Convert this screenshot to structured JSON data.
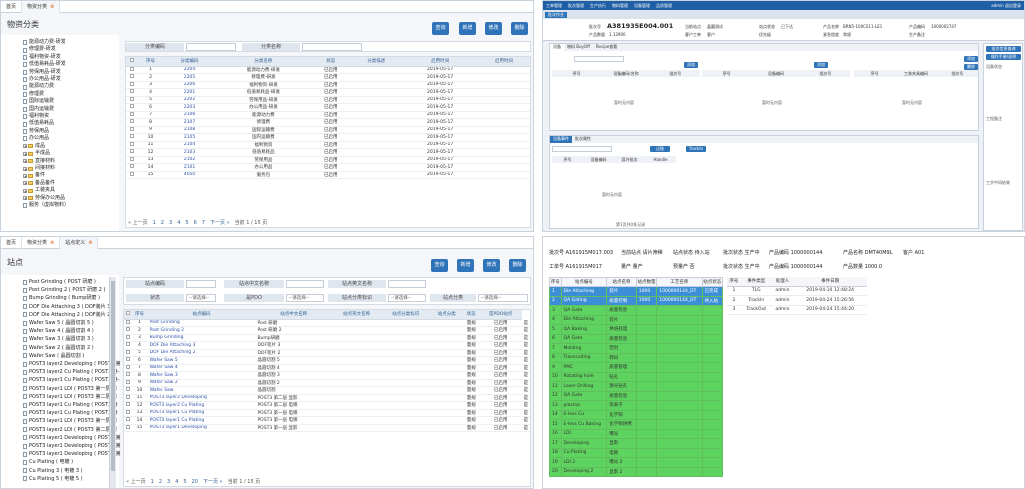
{
  "p1": {
    "tabs": [
      "首页",
      "物资分类"
    ],
    "title": "物资分类",
    "tree": [
      {
        "type": "leaf",
        "label": "能源动力费-研发"
      },
      {
        "type": "leaf",
        "label": "修理费-研发"
      },
      {
        "type": "leaf",
        "label": "福利物资-研发"
      },
      {
        "type": "leaf",
        "label": "低值易耗品-研发"
      },
      {
        "type": "leaf",
        "label": "劳保用品-研发"
      },
      {
        "type": "leaf",
        "label": "办公用品-研发"
      },
      {
        "type": "leaf",
        "label": "能源动力费"
      },
      {
        "type": "leaf",
        "label": "修理费"
      },
      {
        "type": "leaf",
        "label": "国际运输费"
      },
      {
        "type": "leaf",
        "label": "国内运输费"
      },
      {
        "type": "leaf",
        "label": "福利物资"
      },
      {
        "type": "leaf",
        "label": "低值易耗品"
      },
      {
        "type": "leaf",
        "label": "劳保用品"
      },
      {
        "type": "leaf",
        "label": "办公用品"
      },
      {
        "type": "folder",
        "label": "成品"
      },
      {
        "type": "folder",
        "label": "半成品"
      },
      {
        "type": "folder",
        "label": "直接材料"
      },
      {
        "type": "folder",
        "label": "间接材料"
      },
      {
        "type": "folder",
        "label": "备件"
      },
      {
        "type": "folder",
        "label": "备品备件"
      },
      {
        "type": "folder",
        "label": "工装夹具"
      },
      {
        "type": "folder",
        "label": "劳保办公用品"
      },
      {
        "type": "leaf",
        "label": "服务（虚拟物料）"
      }
    ],
    "buttons": {
      "query": "查询",
      "add": "新增",
      "edit": "修改",
      "delete": "删除"
    },
    "filters": {
      "code": "分类编码",
      "name": "分类名称"
    },
    "columns": [
      "",
      "序号",
      "分类编码",
      "分类名称",
      "状态",
      "分类描述",
      "启用时间",
      "启用时间"
    ],
    "rows": [
      [
        "1",
        "2204",
        "能源动力费-研发",
        "已启用",
        "",
        "2019-05-17",
        ""
      ],
      [
        "2",
        "2205",
        "修理费-研发",
        "已启用",
        "",
        "2019-05-17",
        ""
      ],
      [
        "3",
        "2206",
        "福利物资-研发",
        "已启用",
        "",
        "2019-05-17",
        ""
      ],
      [
        "4",
        "2201",
        "低值易耗品-研发",
        "已启用",
        "",
        "2019-05-17",
        ""
      ],
      [
        "5",
        "2202",
        "劳保用品-研发",
        "已启用",
        "",
        "2019-05-17",
        ""
      ],
      [
        "6",
        "2203",
        "办公用品-研发",
        "已启用",
        "",
        "2019-05-17",
        ""
      ],
      [
        "7",
        "2106",
        "能源动力费",
        "已启用",
        "",
        "2019-05-17",
        ""
      ],
      [
        "8",
        "2107",
        "修理费",
        "已启用",
        "",
        "2019-05-17",
        ""
      ],
      [
        "9",
        "2108",
        "国际运输费",
        "已启用",
        "",
        "2019-05-17",
        ""
      ],
      [
        "10",
        "2105",
        "国内运输费",
        "已启用",
        "",
        "2019-05-17",
        ""
      ],
      [
        "11",
        "2104",
        "福利物资",
        "已启用",
        "",
        "2019-05-17",
        ""
      ],
      [
        "12",
        "2103",
        "低值易耗品",
        "已启用",
        "",
        "2019-05-17",
        ""
      ],
      [
        "13",
        "2102",
        "劳保用品",
        "已启用",
        "",
        "2019-05-17",
        ""
      ],
      [
        "14",
        "2101",
        "办公用品",
        "已启用",
        "",
        "2019-05-17",
        ""
      ],
      [
        "15",
        "4050",
        "服务包",
        "已启用",
        "",
        "2019-05-17",
        ""
      ]
    ],
    "pager": {
      "prev": "« 上一页",
      "pages": [
        "1",
        "2",
        "3",
        "4",
        "5",
        "6",
        "7"
      ],
      "next": "下一页 »",
      "info": "当前 1 / 15 页"
    }
  },
  "p2": {
    "tabs": [
      "首页",
      "物资分类",
      "站点定义"
    ],
    "title": "站点",
    "tree": [
      "Post Grinding ( POST 研磨 )",
      "Post Grinding 2 ( POST 研磨 2 )",
      "Bump Grinding ( Bump研磨 )",
      "DOF Die Attaching 3 ( DOF装片 3 )",
      "DOF Die Attaching 2 ( DOF装片 2 )",
      "Wafer Saw 5 ( 晶圆切割 5 )",
      "Wafer Saw 4 ( 晶圆切割 4 )",
      "Wafer Saw 3 ( 晶圆切割 3 )",
      "Wafer Saw 2 ( 晶圆切割 2 )",
      "Wafer Saw ( 晶圆切割 )",
      "POST3 layer2 Developing ( POST3 第",
      "POST3 layer2 Cu Plating ( POST3 第-",
      "POST3 layer1 Cu Plating ( POST3 第-",
      "POST3 layer1 LDI ( POST3 第一层 曝",
      "POST3 layer1 LDI ( POST3 第二层 曝",
      "POST3 layer1 Cu Plating ( POST3 第",
      "POST3 layer1 Cu Plating ( POST3 第",
      "POST3 layer1 LDI ( POST3 第一层 曝",
      "POST3 layer2 LDI ( POST3 第二层 曝",
      "POST3 layer1 Developing ( POST3 第",
      "POST3 layer1 Developing ( POST3 第",
      "POST3 layer1 Developing ( POST3 第",
      "Cu Plating ( 电镀 )",
      "Cu Plating 3 ( 电镀 3 )",
      "Cu Plating 5 ( 电镀 5 )"
    ],
    "buttons": {
      "query": "查询",
      "add": "新增",
      "edit": "修改",
      "delete": "删除"
    },
    "filters": {
      "code": "站点编码",
      "cn_name": "站点中文名称",
      "en_name": "站点英文名称",
      "status": "状态",
      "status_sel": "--请选择--",
      "pdo": "是PDO",
      "pdo_sel": "--请选择--",
      "class": "站点分类标识",
      "class_sel": "--请选择--",
      "cat": "站点分类",
      "cat_sel": "--请选择--"
    },
    "columns": [
      "",
      "序号",
      "站点编码",
      "站点中文名称",
      "站点英文名称",
      "站点分类标识",
      "站点分类",
      "状态",
      "是PDO站点"
    ],
    "rows": [
      [
        "1",
        "Post Grinding",
        "Post 研磨",
        "",
        "",
        "",
        "量规",
        "已启用",
        "是"
      ],
      [
        "2",
        "Post Grinding 2",
        "Post 研磨 2",
        "",
        "",
        "",
        "量规",
        "已启用",
        "是"
      ],
      [
        "3",
        "Bump Grinding",
        "Bump研磨",
        "",
        "",
        "",
        "量规",
        "已启用",
        "是"
      ],
      [
        "4",
        "DOF Die Attaching 3",
        "DOF装片 3",
        "",
        "",
        "",
        "量规",
        "已启用",
        "是"
      ],
      [
        "5",
        "DOF Die Attaching 2",
        "DOF装片 2",
        "",
        "",
        "",
        "量规",
        "已启用",
        "是"
      ],
      [
        "6",
        "Wafer Saw 5",
        "晶圆切割 5",
        "",
        "",
        "",
        "量规",
        "已启用",
        "是"
      ],
      [
        "7",
        "Wafer Saw 4",
        "晶圆切割 4",
        "",
        "",
        "",
        "量规",
        "已启用",
        "是"
      ],
      [
        "8",
        "Wafer Saw 3",
        "晶圆切割 3",
        "",
        "",
        "",
        "量规",
        "已启用",
        "是"
      ],
      [
        "9",
        "Wafer Saw 2",
        "晶圆切割 2",
        "",
        "",
        "",
        "量规",
        "已启用",
        "是"
      ],
      [
        "10",
        "Wafer Saw",
        "晶圆切割",
        "",
        "",
        "",
        "量规",
        "已启用",
        "是"
      ],
      [
        "11",
        "POST3 layer2 Developing",
        "POST3 第二层 显影",
        "",
        "",
        "",
        "量规",
        "已启用",
        "是"
      ],
      [
        "12",
        "POST3 layer2 Cu Plating",
        "POST3 第二层 电镀",
        "",
        "",
        "",
        "量规",
        "已启用",
        "是"
      ],
      [
        "13",
        "POST3 layer1 Cu Plating",
        "POST3 第一层 电镀",
        "",
        "",
        "",
        "量规",
        "已启用",
        "是"
      ],
      [
        "14",
        "POST3 layer1 Cu Plating",
        "POST3 第一层 电镀",
        "",
        "",
        "",
        "量规",
        "已启用",
        "是"
      ],
      [
        "15",
        "POST3 layer1 Developing",
        "POST3 第一层 显影",
        "",
        "",
        "",
        "量规",
        "已启用",
        "是"
      ]
    ],
    "pager": {
      "prev": "« 上一页",
      "pages": [
        "1",
        "2",
        "3",
        "4",
        "5"
      ],
      "next": "下一页 »",
      "jump": "20",
      "info": "当前 1 / 15 页"
    }
  },
  "p3": {
    "topnav": [
      "工单管理",
      "批次管理",
      "生产执行",
      "物料管理",
      "设备管理",
      "品质管理"
    ],
    "user": "admin  退出登录",
    "subtab": "批次作业",
    "lot": "A381935E004.001",
    "fields": [
      [
        "批次号",
        ""
      ],
      [
        "当前站点",
        "晶圆测试"
      ],
      [
        "站点状态",
        "已下达"
      ],
      [
        "产品名称",
        "BRN5-100C011-LE1"
      ],
      [
        "产品编码",
        "1000002747"
      ],
      [
        "产品数量",
        "1.12900"
      ],
      [
        "客户工单",
        "客户"
      ],
      [
        "优先级",
        ""
      ],
      [
        "紧急程度",
        "常规"
      ],
      [
        "生产备注",
        ""
      ]
    ],
    "inner_tabs": [
      "设备",
      "物料 BuyOff",
      "Recipe查看"
    ],
    "table_cols1": [
      "序号",
      "设备编码/名称",
      "批次号"
    ],
    "table_cols2": [
      "序号",
      "设备编码",
      "工装夹具编码",
      "批次号"
    ],
    "empty": "暂时无内容",
    "btn_add": "添加",
    "btn_del": "删除",
    "bottom_tabs": [
      "设备事件",
      "批次属性"
    ],
    "bottom_cols": [
      "序号",
      "设备编码",
      "容许批次",
      "Handle"
    ],
    "bottom_btn1": "过账",
    "bottom_btn2": "TrackIn",
    "right_btns": [
      "批次信息查询",
      "操作手册/说明"
    ],
    "right_labels": [
      "设备状态",
      "工程备注",
      "工步中间结果"
    ],
    "footer": "第1页共0条记录"
  },
  "p4": {
    "info": [
      [
        "批次号",
        "A161915M017.003"
      ],
      [
        "当前站点",
        "请片筛稀"
      ],
      [
        "站点状态",
        "待入站"
      ],
      [
        "批次状态",
        "生产中"
      ],
      [
        "产品编码",
        "1000000144"
      ],
      [
        "产品名称",
        "DMT40M9L"
      ],
      [
        "客户",
        "A01"
      ],
      [
        "工单号",
        "A161915M017"
      ],
      [
        "量产",
        "量产"
      ],
      [
        "预量产",
        "否"
      ],
      [
        "批次状态",
        "生产中"
      ],
      [
        "产品编码",
        "1000000144"
      ],
      [
        "产品数量",
        "1000.0"
      ]
    ],
    "route_cols": [
      "序号",
      "站点编号",
      "站点名称",
      "站点数量",
      "工艺名称",
      "站点状态"
    ],
    "route": [
      [
        "1",
        "Die Attaching",
        "装片",
        "1000",
        "1000000144_DT",
        "已完成",
        "blue"
      ],
      [
        "2",
        "QA Gating",
        "质量控制",
        "1000",
        "1000000144_DT",
        "待入站",
        "blue"
      ],
      [
        "3",
        "QA Gate",
        "质量检验",
        "",
        "",
        "",
        "green"
      ],
      [
        "4",
        "Die Attaching",
        "装片",
        "",
        "",
        "",
        "green"
      ],
      [
        "5",
        "QA Baking",
        "烘焙处理",
        "",
        "",
        "",
        "green"
      ],
      [
        "6",
        "QA Gate",
        "质量检验",
        "",
        "",
        "",
        "green"
      ],
      [
        "7",
        "Molding",
        "塑封",
        "",
        "",
        "",
        "green"
      ],
      [
        "8",
        "Transcoding",
        "转码",
        "",
        "",
        "",
        "green"
      ],
      [
        "9",
        "PMC",
        "质量管理",
        "",
        "",
        "",
        "green"
      ],
      [
        "10",
        "Rotating hole",
        "钻孔",
        "",
        "",
        "",
        "green"
      ],
      [
        "11",
        "Laser Drilling",
        "激光钻孔",
        "",
        "",
        "",
        "green"
      ],
      [
        "12",
        "QA Gate",
        "质量检验",
        "",
        "",
        "",
        "green"
      ],
      [
        "13",
        "plasma",
        "等离子",
        "",
        "",
        "",
        "green"
      ],
      [
        "14",
        "E-less Cu",
        "化学铜",
        "",
        "",
        "",
        "green"
      ],
      [
        "15",
        "E-less Cu Baking",
        "化学铜烘烤",
        "",
        "",
        "",
        "green"
      ],
      [
        "16",
        "LDI",
        "曝光",
        "",
        "",
        "",
        "green"
      ],
      [
        "17",
        "Developing",
        "显影",
        "",
        "",
        "",
        "green"
      ],
      [
        "18",
        "Cu Plating",
        "电镀",
        "",
        "",
        "",
        "green"
      ],
      [
        "19",
        "LDI 2",
        "曝光 2",
        "",
        "",
        "",
        "green"
      ],
      [
        "20",
        "Developing 2",
        "显影 2",
        "",
        "",
        "",
        "green"
      ]
    ],
    "event_cols": [
      "序号",
      "事件类型",
      "处理人",
      "事件日期"
    ],
    "events": [
      [
        "1",
        "TLG",
        "admin",
        "2019-04-10 12:48:24"
      ],
      [
        "2",
        "TrackIn",
        "admin",
        "2019-04-24 15:26:56"
      ],
      [
        "3",
        "TrackOut",
        "admin",
        "2019-04-24 15:44:20"
      ]
    ]
  }
}
